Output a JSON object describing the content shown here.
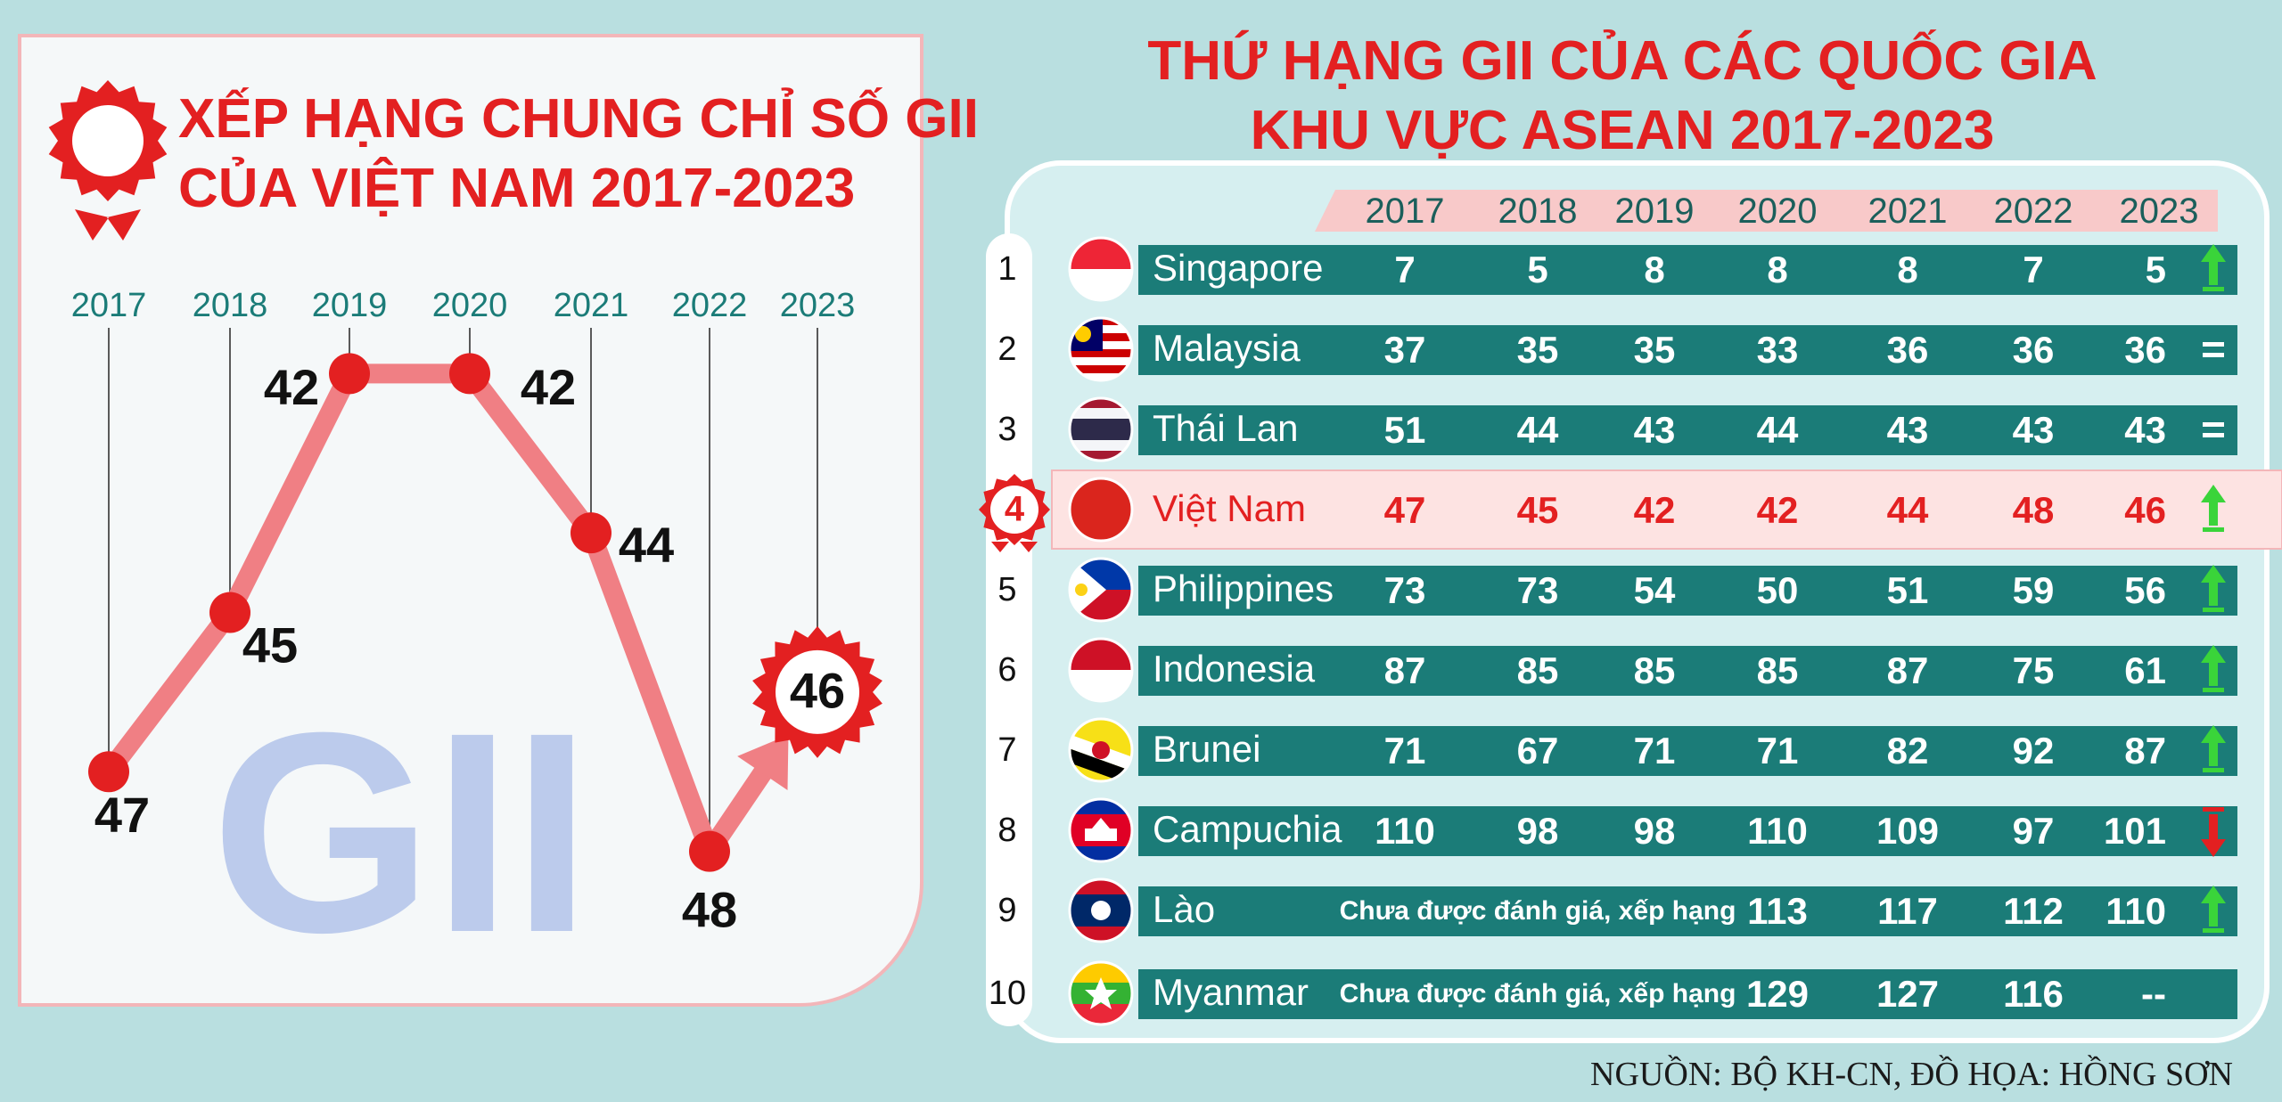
{
  "colors": {
    "accent": "#e32021",
    "teal": "#1b7c78",
    "line": "#f07f84",
    "highlight_row": "#fde3e2",
    "up_arrow": "#3ad43a",
    "down_arrow": "#e32021"
  },
  "left_title": {
    "line1": "XẾP HẠNG CHUNG CHỈ SỐ GII",
    "line2": "CỦA VIỆT NAM 2017-2023"
  },
  "watermark": "GII",
  "right_title": {
    "line1": "THỨ HẠNG GII CỦA CÁC QUỐC GIA",
    "line2": "KHU VỰC ASEAN 2017-2023"
  },
  "source_note": "NGUỒN: BỘ KH-CN, ĐỒ HỌA: HỒNG SƠN",
  "chart_data": [
    {
      "type": "line",
      "x": [
        "2017",
        "2018",
        "2019",
        "2020",
        "2021",
        "2022",
        "2023"
      ],
      "values": [
        47,
        45,
        42,
        42,
        44,
        48,
        46
      ],
      "highlight_last": true
    },
    {
      "type": "table",
      "columns": [
        "2017",
        "2018",
        "2019",
        "2020",
        "2021",
        "2022",
        "2023"
      ],
      "not_rated": "Chưa được đánh giá, xếp hạng",
      "rows": [
        {
          "rank": "1",
          "country": "Singapore",
          "flag": "flag-singapore",
          "values": [
            "7",
            "5",
            "8",
            "8",
            "8",
            "7",
            "5"
          ],
          "trend": "up"
        },
        {
          "rank": "2",
          "country": "Malaysia",
          "flag": "flag-malaysia",
          "values": [
            "37",
            "35",
            "35",
            "33",
            "36",
            "36",
            "36"
          ],
          "trend": "same"
        },
        {
          "rank": "3",
          "country": "Thái Lan",
          "flag": "flag-thailand",
          "values": [
            "51",
            "44",
            "43",
            "44",
            "43",
            "43",
            "43"
          ],
          "trend": "same"
        },
        {
          "rank": "4",
          "country": "Việt Nam",
          "flag": "flag-vietnam",
          "values": [
            "47",
            "45",
            "42",
            "42",
            "44",
            "48",
            "46"
          ],
          "trend": "up",
          "highlight": true
        },
        {
          "rank": "5",
          "country": "Philippines",
          "flag": "flag-philippines",
          "values": [
            "73",
            "73",
            "54",
            "50",
            "51",
            "59",
            "56"
          ],
          "trend": "up"
        },
        {
          "rank": "6",
          "country": "Indonesia",
          "flag": "flag-indonesia",
          "values": [
            "87",
            "85",
            "85",
            "85",
            "87",
            "75",
            "61"
          ],
          "trend": "up"
        },
        {
          "rank": "7",
          "country": "Brunei",
          "flag": "flag-brunei",
          "values": [
            "71",
            "67",
            "71",
            "71",
            "82",
            "92",
            "87"
          ],
          "trend": "up"
        },
        {
          "rank": "8",
          "country": "Campuchia",
          "flag": "flag-cambodia",
          "values": [
            "110",
            "98",
            "98",
            "110",
            "109",
            "97",
            "101"
          ],
          "trend": "down"
        },
        {
          "rank": "9",
          "country": "Lào",
          "flag": "flag-laos",
          "values": [
            null,
            null,
            null,
            "113",
            "117",
            "112",
            "110"
          ],
          "trend": "up"
        },
        {
          "rank": "10",
          "country": "Myanmar",
          "flag": "flag-myanmar",
          "values": [
            null,
            null,
            null,
            "129",
            "127",
            "116",
            "--"
          ],
          "trend": "none"
        }
      ]
    }
  ]
}
